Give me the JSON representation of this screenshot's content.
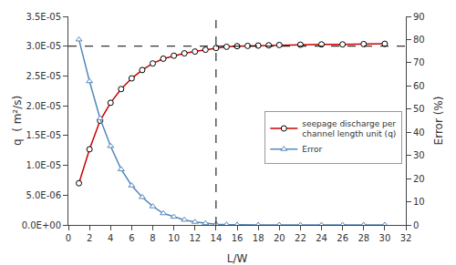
{
  "chart_data": {
    "type": "line",
    "x_label": "L/W",
    "y_label": "q  ( m²/s)",
    "y2_label": "Error (%)",
    "series": [
      {
        "name": "seepage discharge per\nchannel length unit (q)",
        "color": "#cc0000",
        "marker": "circle",
        "axis": "y",
        "x": [
          1,
          2,
          3,
          4,
          5,
          6,
          7,
          8,
          9,
          10,
          11,
          12,
          13,
          14,
          15,
          16,
          17,
          18,
          19,
          20,
          22,
          24,
          26,
          28,
          30
        ],
        "values": [
          7e-06,
          1.27e-05,
          1.75e-05,
          2.05e-05,
          2.28e-05,
          2.46e-05,
          2.6e-05,
          2.71e-05,
          2.79e-05,
          2.84e-05,
          2.88e-05,
          2.91e-05,
          2.94e-05,
          2.97e-05,
          2.99e-05,
          3e-05,
          3.005e-05,
          3.01e-05,
          3.015e-05,
          3.02e-05,
          3.025e-05,
          3.03e-05,
          3.03e-05,
          3.035e-05,
          3.04e-05
        ]
      },
      {
        "name": "Error",
        "color": "#5588bb",
        "marker": "triangle-up",
        "axis": "y2",
        "x": [
          1,
          2,
          3,
          4,
          5,
          6,
          7,
          8,
          9,
          10,
          11,
          12,
          13,
          14,
          15,
          16,
          18,
          20,
          22,
          24,
          26,
          28,
          30
        ],
        "values": [
          80,
          62,
          46,
          34,
          24,
          17,
          12,
          8,
          5,
          3.5,
          2.2,
          1.3,
          0.7,
          0.3,
          0.15,
          0.05,
          0.02,
          0.01,
          0.005,
          0.003,
          0.002,
          0.001,
          0.0005
        ]
      }
    ],
    "hline": 3e-05,
    "vline": 14,
    "xlim": [
      0,
      32
    ],
    "xticks": [
      0,
      2,
      4,
      6,
      8,
      10,
      12,
      14,
      16,
      18,
      20,
      22,
      24,
      26,
      28,
      30,
      32
    ],
    "ylim": [
      0,
      3.5e-05
    ],
    "yticks": [
      {
        "value": 0.0,
        "label": "0.0E+00"
      },
      {
        "value": 5e-06,
        "label": "5.0E-06"
      },
      {
        "value": 1e-05,
        "label": "1.0E-05"
      },
      {
        "value": 1.5e-05,
        "label": "1.5E-05"
      },
      {
        "value": 2e-05,
        "label": "2.0E-05"
      },
      {
        "value": 2.5e-05,
        "label": "2.5E-05"
      },
      {
        "value": 3e-05,
        "label": "3.0E-05"
      },
      {
        "value": 3.5e-05,
        "label": "3.5E-05"
      }
    ],
    "y2lim": [
      0,
      90
    ],
    "y2ticks": [
      0,
      10,
      20,
      30,
      40,
      50,
      60,
      70,
      80,
      90
    ],
    "grid": false,
    "legend": "right"
  }
}
